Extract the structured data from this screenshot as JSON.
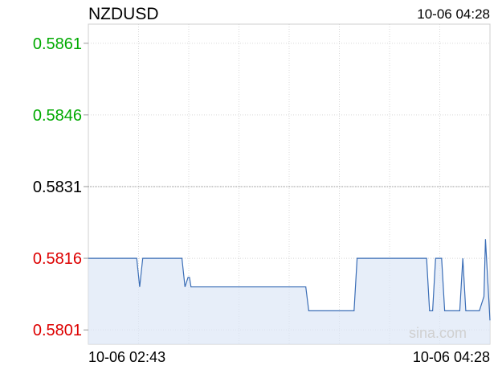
{
  "chart_data": {
    "type": "line",
    "title": "NZDUSD",
    "timestamp": "10-06 04:28",
    "x_start_label": "10-06 02:43",
    "x_end_label": "10-06 04:28",
    "watermark": "sina.com",
    "y_ticks": [
      {
        "value": 0.5861,
        "label": "0.5861",
        "color": "#00aa00"
      },
      {
        "value": 0.5846,
        "label": "0.5846",
        "color": "#00aa00"
      },
      {
        "value": 0.5831,
        "label": "0.5831",
        "color": "#000000"
      },
      {
        "value": 0.5816,
        "label": "0.5816",
        "color": "#dd0000"
      },
      {
        "value": 0.5801,
        "label": "0.5801",
        "color": "#dd0000"
      }
    ],
    "ylim": [
      0.5798,
      0.5865
    ],
    "reference_value": 0.5831,
    "grid": true,
    "colors": {
      "line": "#3a6db6",
      "fill": "#dde7f6",
      "up": "#00aa00",
      "down": "#dd0000",
      "neutral": "#000000"
    },
    "series": [
      {
        "values": [
          [
            0,
            0.5816
          ],
          [
            32,
            0.5816
          ],
          [
            34,
            0.581
          ],
          [
            36,
            0.5816
          ],
          [
            62,
            0.5816
          ],
          [
            64,
            0.581
          ],
          [
            66,
            0.5812
          ],
          [
            67,
            0.5812
          ],
          [
            68,
            0.581
          ],
          [
            144,
            0.581
          ],
          [
            146,
            0.5805
          ],
          [
            176,
            0.5805
          ],
          [
            178,
            0.5816
          ],
          [
            224,
            0.5816
          ],
          [
            226,
            0.5805
          ],
          [
            228,
            0.5805
          ],
          [
            230,
            0.5816
          ],
          [
            234,
            0.5816
          ],
          [
            236,
            0.5805
          ],
          [
            246,
            0.5805
          ],
          [
            248,
            0.5816
          ],
          [
            250,
            0.5805
          ],
          [
            259,
            0.5805
          ],
          [
            262,
            0.5808
          ],
          [
            263,
            0.582
          ],
          [
            266,
            0.5803
          ]
        ]
      }
    ],
    "x_domain": [
      0,
      266
    ]
  }
}
